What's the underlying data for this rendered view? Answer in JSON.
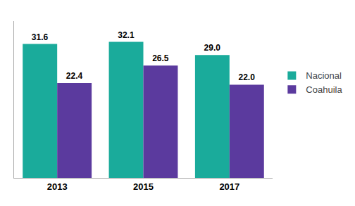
{
  "chart_data": {
    "type": "bar",
    "categories": [
      "2013",
      "2015",
      "2017"
    ],
    "series": [
      {
        "name": "Nacional",
        "color": "#1aab9b",
        "values": [
          31.6,
          32.1,
          29.0
        ],
        "value_labels": [
          "31.6",
          "32.1",
          "29.0"
        ]
      },
      {
        "name": "Coahuila",
        "color": "#5b3a9e",
        "values": [
          22.4,
          26.5,
          22.0
        ],
        "value_labels": [
          "22.4",
          "26.5",
          "22.0"
        ]
      }
    ],
    "ylim": [
      0,
      37
    ],
    "grid": false,
    "legend": "right",
    "data_labels": true,
    "tick_labels": "x"
  }
}
